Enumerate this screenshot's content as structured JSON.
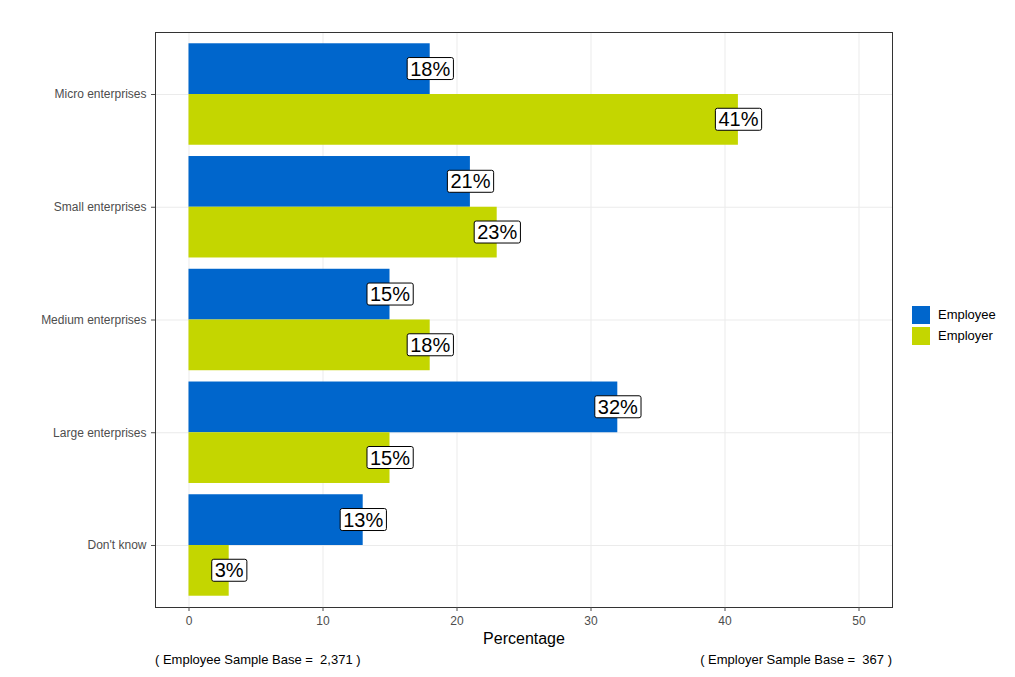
{
  "chart_data": {
    "type": "bar",
    "orientation": "horizontal",
    "x_label": "Percentage",
    "categories": [
      "Micro enterprises",
      "Small enterprises",
      "Medium enterprises",
      "Large enterprises",
      "Don't know"
    ],
    "series": [
      {
        "name": "Employee",
        "color": "#0066CC",
        "values": [
          18,
          21,
          15,
          32,
          13
        ],
        "value_labels": [
          "18%",
          "21%",
          "15%",
          "32%",
          "13%"
        ]
      },
      {
        "name": "Employer",
        "color": "#C4D600",
        "values": [
          41,
          23,
          18,
          15,
          3
        ],
        "value_labels": [
          "41%",
          "23%",
          "18%",
          "15%",
          "3%"
        ]
      }
    ],
    "xlim": [
      -2.5,
      52.5
    ],
    "xticks": [
      0,
      10,
      20,
      30,
      40,
      50
    ],
    "grid": true,
    "legend": "right",
    "data_labels": true,
    "annotations": [
      "( Employee Sample Base =  2,371 )",
      "( Employer Sample Base =  367 )"
    ]
  }
}
